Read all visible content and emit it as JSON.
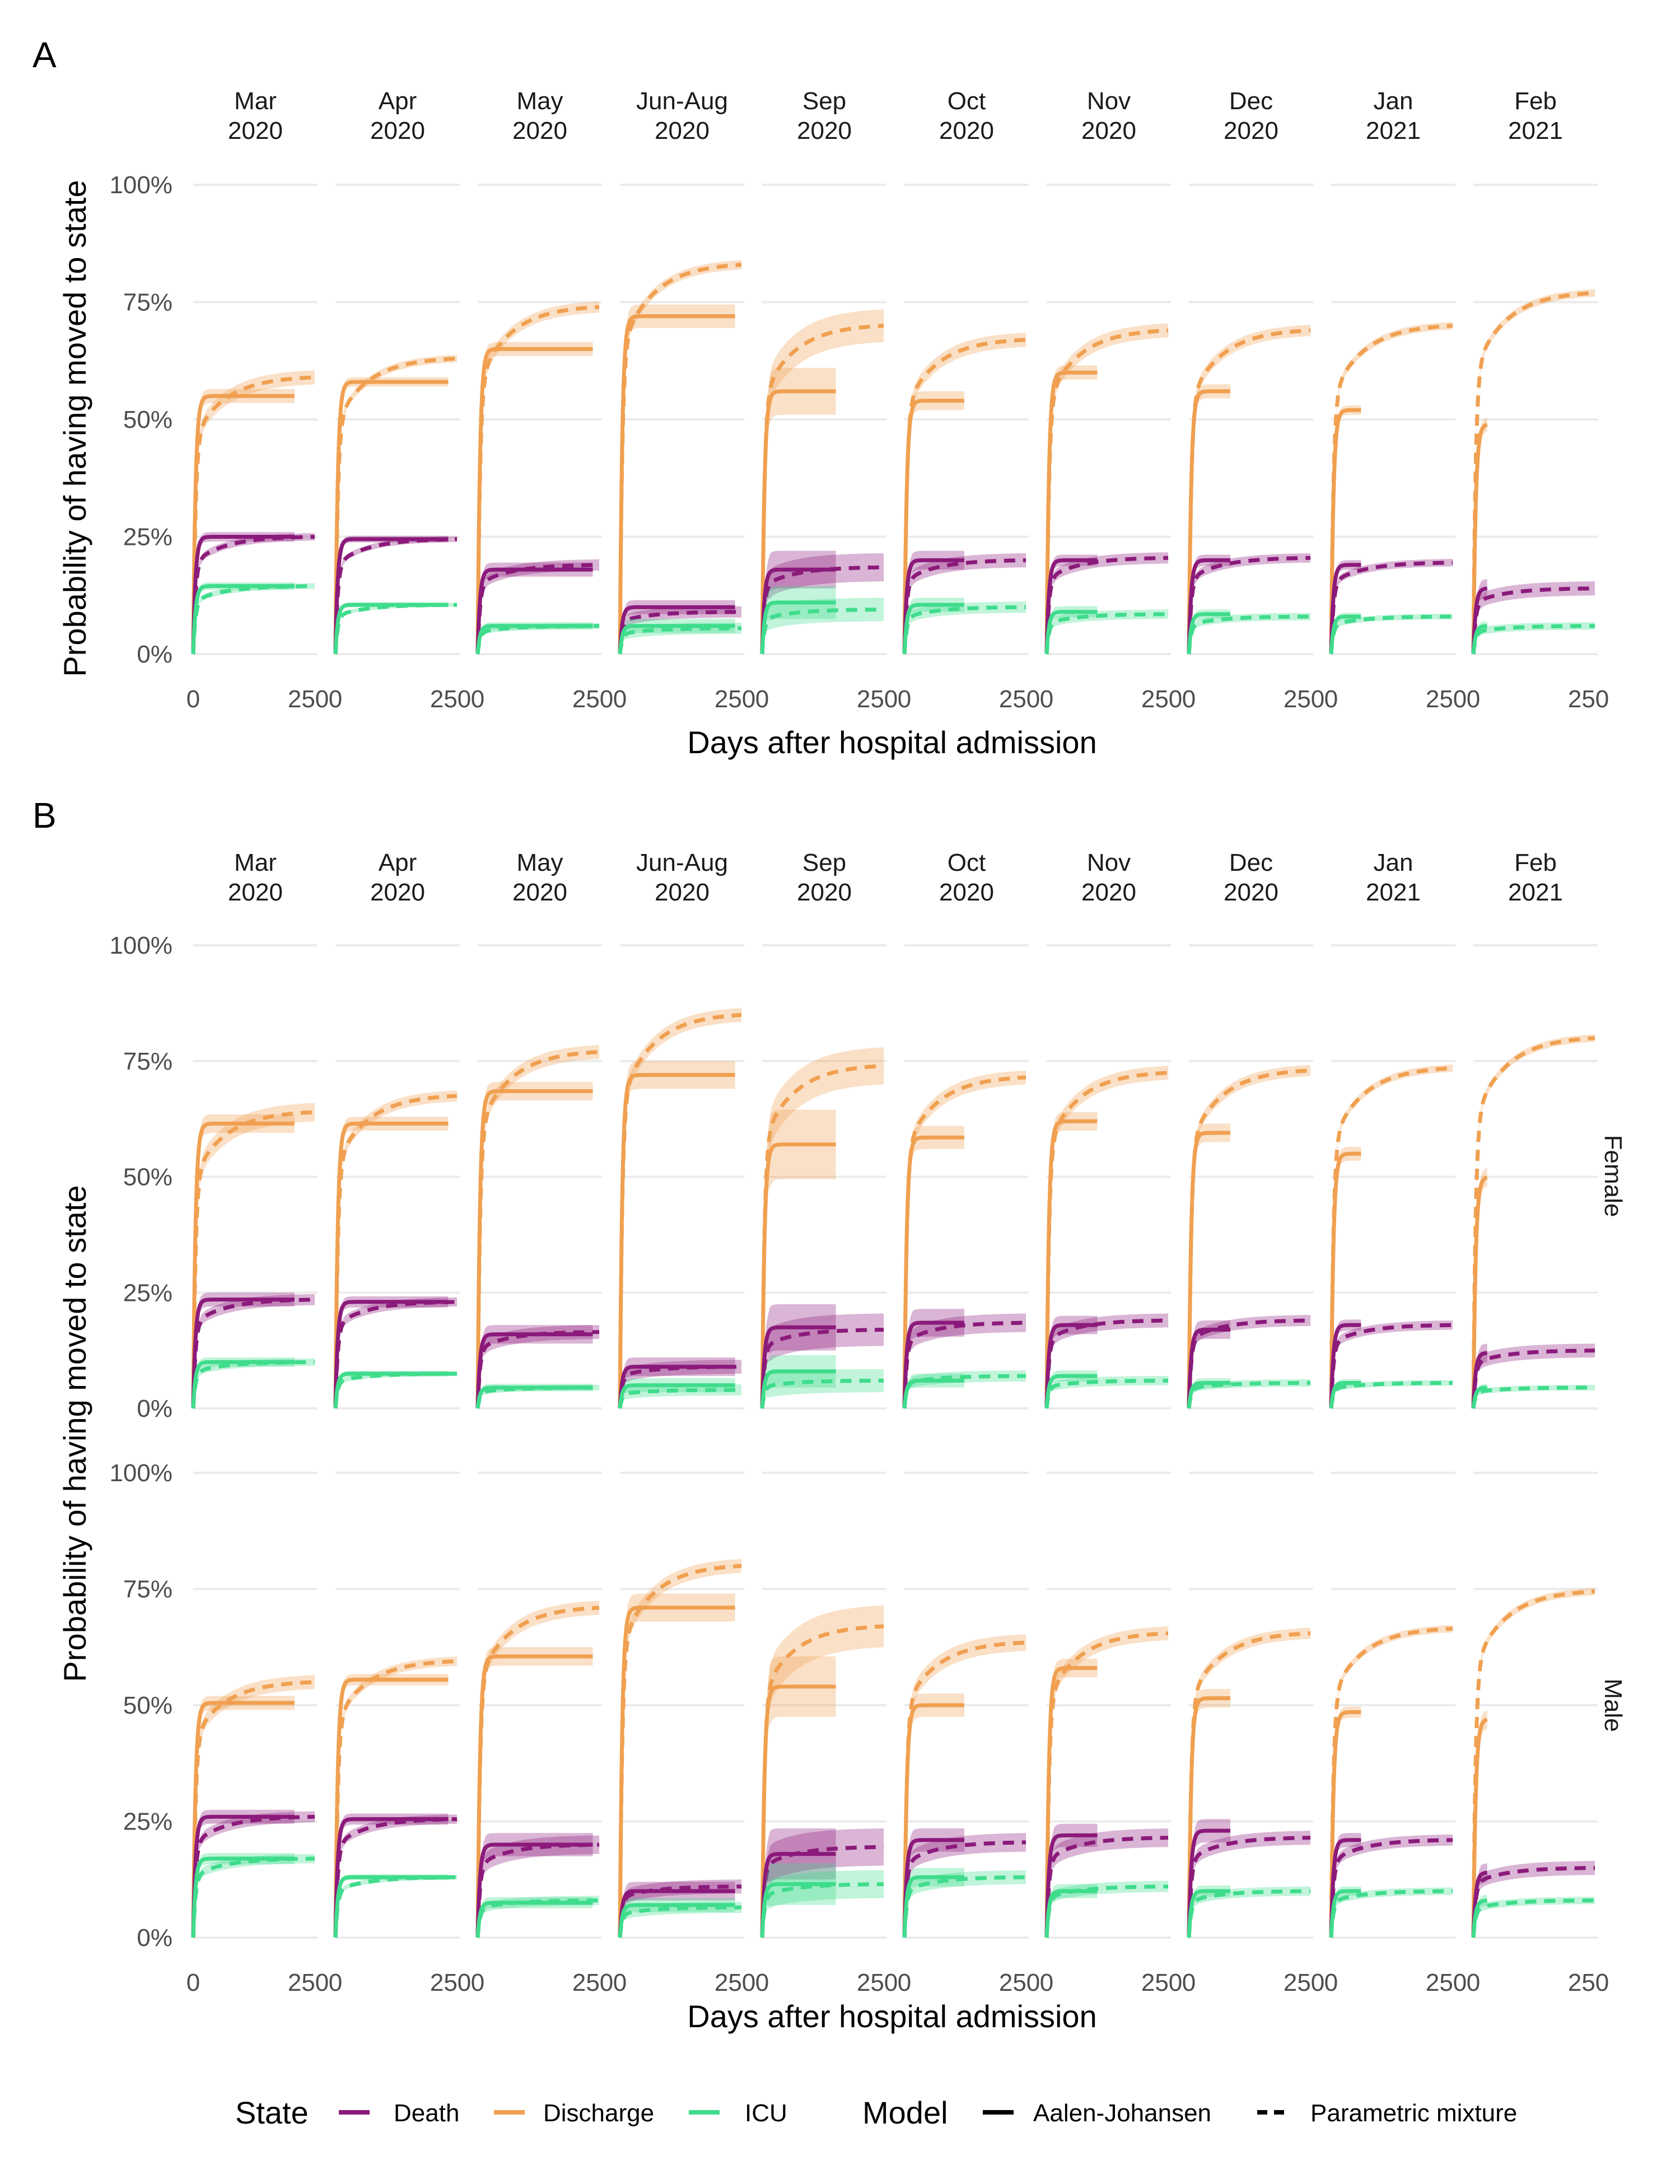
{
  "figure": {
    "months": [
      [
        "Mar",
        "2020"
      ],
      [
        "Apr",
        "2020"
      ],
      [
        "May",
        "2020"
      ],
      [
        "Jun-Aug",
        "2020"
      ],
      [
        "Sep",
        "2020"
      ],
      [
        "Oct",
        "2020"
      ],
      [
        "Nov",
        "2020"
      ],
      [
        "Dec",
        "2020"
      ],
      [
        "Jan",
        "2021"
      ],
      [
        "Feb",
        "2021"
      ]
    ],
    "y_ticks": [
      "0%",
      "25%",
      "50%",
      "75%",
      "100%"
    ],
    "x_ticks": [
      "0",
      "250"
    ],
    "xlabel": "Days after hospital admission",
    "ylabel": "Probability of having moved to state",
    "legend": {
      "state_title": "State",
      "states": [
        {
          "name": "Death",
          "color": "#8b1a7b"
        },
        {
          "name": "Discharge",
          "color": "#f0a050"
        },
        {
          "name": "ICU",
          "color": "#3fdc8c"
        }
      ],
      "model_title": "Model",
      "models": [
        {
          "name": "Aalen-Johansen",
          "line": "solid"
        },
        {
          "name": "Parametric mixture",
          "line": "dashed"
        }
      ]
    }
  },
  "chart_data": [
    {
      "panel": "A",
      "type": "line",
      "xlabel": "Days after hospital admission",
      "ylabel": "Probability of having moved to state",
      "xlim": [
        0,
        270
      ],
      "ylim": [
        0,
        1
      ],
      "grid": true,
      "facets_row": [
        ""
      ],
      "facets_col": [
        "Mar 2020",
        "Apr 2020",
        "May 2020",
        "Jun-Aug 2020",
        "Sep 2020",
        "Oct 2020",
        "Nov 2020",
        "Dec 2020",
        "Jan 2021",
        "Feb 2021"
      ],
      "aj_followup_days": [
        [
          220,
          245,
          250,
          250,
          160,
          130,
          110,
          90,
          65,
          30
        ]
      ],
      "series": [
        {
          "name": "Discharge",
          "model": "Aalen-Johansen",
          "values": [
            [
              0.55,
              0.58,
              0.65,
              0.72,
              0.56,
              0.54,
              0.6,
              0.56,
              0.52,
              0.49
            ]
          ],
          "ci_halfwidth": [
            [
              0.015,
              0.01,
              0.015,
              0.025,
              0.05,
              0.02,
              0.015,
              0.015,
              0.01,
              0.015
            ]
          ]
        },
        {
          "name": "Discharge",
          "model": "Parametric mixture",
          "values": [
            [
              0.59,
              0.63,
              0.74,
              0.83,
              0.7,
              0.67,
              0.69,
              0.69,
              0.7,
              0.77
            ]
          ],
          "ci_halfwidth": [
            [
              0.015,
              0.008,
              0.012,
              0.01,
              0.035,
              0.015,
              0.015,
              0.012,
              0.008,
              0.008
            ]
          ]
        },
        {
          "name": "Death",
          "model": "Aalen-Johansen",
          "values": [
            [
              0.25,
              0.245,
              0.18,
              0.1,
              0.18,
              0.2,
              0.2,
              0.2,
              0.19,
              0.14
            ]
          ],
          "ci_halfwidth": [
            [
              0.01,
              0.007,
              0.015,
              0.015,
              0.04,
              0.02,
              0.012,
              0.012,
              0.01,
              0.02
            ]
          ]
        },
        {
          "name": "Death",
          "model": "Parametric mixture",
          "values": [
            [
              0.25,
              0.245,
              0.19,
              0.09,
              0.185,
              0.2,
              0.205,
              0.205,
              0.195,
              0.14
            ]
          ],
          "ci_halfwidth": [
            [
              0.008,
              0.006,
              0.012,
              0.012,
              0.03,
              0.015,
              0.012,
              0.01,
              0.008,
              0.015
            ]
          ]
        },
        {
          "name": "ICU",
          "model": "Aalen-Johansen",
          "values": [
            [
              0.145,
              0.105,
              0.06,
              0.06,
              0.11,
              0.105,
              0.09,
              0.085,
              0.08,
              0.06
            ]
          ],
          "ci_halfwidth": [
            [
              0.008,
              0.005,
              0.008,
              0.015,
              0.035,
              0.015,
              0.012,
              0.01,
              0.008,
              0.01
            ]
          ]
        },
        {
          "name": "ICU",
          "model": "Parametric mixture",
          "values": [
            [
              0.145,
              0.105,
              0.06,
              0.055,
              0.095,
              0.1,
              0.085,
              0.08,
              0.08,
              0.06
            ]
          ],
          "ci_halfwidth": [
            [
              0.006,
              0.004,
              0.006,
              0.012,
              0.025,
              0.012,
              0.01,
              0.008,
              0.006,
              0.008
            ]
          ]
        }
      ]
    },
    {
      "panel": "B",
      "type": "line",
      "xlabel": "Days after hospital admission",
      "ylabel": "Probability of having moved to state",
      "xlim": [
        0,
        270
      ],
      "ylim": [
        0,
        1
      ],
      "grid": true,
      "facets_row": [
        "Female",
        "Male"
      ],
      "facets_col": [
        "Mar 2020",
        "Apr 2020",
        "May 2020",
        "Jun-Aug 2020",
        "Sep 2020",
        "Oct 2020",
        "Nov 2020",
        "Dec 2020",
        "Jan 2021",
        "Feb 2021"
      ],
      "aj_followup_days": [
        [
          220,
          245,
          250,
          250,
          160,
          130,
          110,
          90,
          65,
          30
        ],
        [
          220,
          245,
          250,
          250,
          160,
          130,
          110,
          90,
          65,
          30
        ]
      ],
      "series": [
        {
          "name": "Discharge",
          "model": "Aalen-Johansen",
          "values": [
            [
              0.615,
              0.615,
              0.685,
              0.72,
              0.57,
              0.585,
              0.62,
              0.595,
              0.55,
              0.5
            ],
            [
              0.505,
              0.555,
              0.605,
              0.71,
              0.54,
              0.5,
              0.58,
              0.515,
              0.485,
              0.47
            ]
          ],
          "ci_halfwidth": [
            [
              0.02,
              0.015,
              0.02,
              0.03,
              0.075,
              0.025,
              0.02,
              0.02,
              0.015,
              0.02
            ],
            [
              0.015,
              0.012,
              0.02,
              0.03,
              0.065,
              0.025,
              0.02,
              0.02,
              0.012,
              0.02
            ]
          ]
        },
        {
          "name": "Discharge",
          "model": "Parametric mixture",
          "values": [
            [
              0.64,
              0.675,
              0.77,
              0.85,
              0.74,
              0.715,
              0.725,
              0.73,
              0.735,
              0.8
            ],
            [
              0.55,
              0.595,
              0.71,
              0.8,
              0.67,
              0.635,
              0.655,
              0.655,
              0.665,
              0.745
            ]
          ],
          "ci_halfwidth": [
            [
              0.02,
              0.012,
              0.015,
              0.015,
              0.04,
              0.015,
              0.015,
              0.012,
              0.008,
              0.008
            ],
            [
              0.015,
              0.01,
              0.015,
              0.015,
              0.045,
              0.018,
              0.015,
              0.012,
              0.008,
              0.008
            ]
          ]
        },
        {
          "name": "Death",
          "model": "Aalen-Johansen",
          "values": [
            [
              0.235,
              0.23,
              0.16,
              0.09,
              0.175,
              0.185,
              0.18,
              0.17,
              0.18,
              0.12
            ],
            [
              0.26,
              0.255,
              0.2,
              0.1,
              0.18,
              0.21,
              0.22,
              0.23,
              0.21,
              0.14
            ]
          ],
          "ci_halfwidth": [
            [
              0.015,
              0.012,
              0.02,
              0.02,
              0.05,
              0.03,
              0.02,
              0.02,
              0.012,
              0.02
            ],
            [
              0.015,
              0.012,
              0.025,
              0.02,
              0.055,
              0.025,
              0.025,
              0.025,
              0.015,
              0.02
            ]
          ]
        },
        {
          "name": "Death",
          "model": "Parametric mixture",
          "values": [
            [
              0.235,
              0.23,
              0.165,
              0.09,
              0.17,
              0.185,
              0.19,
              0.19,
              0.18,
              0.125
            ],
            [
              0.26,
              0.255,
              0.2,
              0.11,
              0.195,
              0.205,
              0.215,
              0.215,
              0.21,
              0.15
            ]
          ],
          "ci_halfwidth": [
            [
              0.012,
              0.01,
              0.015,
              0.015,
              0.035,
              0.02,
              0.015,
              0.012,
              0.01,
              0.015
            ],
            [
              0.012,
              0.01,
              0.02,
              0.015,
              0.04,
              0.02,
              0.02,
              0.015,
              0.012,
              0.015
            ]
          ]
        },
        {
          "name": "ICU",
          "model": "Aalen-Johansen",
          "values": [
            [
              0.1,
              0.075,
              0.045,
              0.05,
              0.08,
              0.06,
              0.07,
              0.055,
              0.055,
              0.045
            ],
            [
              0.17,
              0.13,
              0.075,
              0.07,
              0.115,
              0.13,
              0.1,
              0.1,
              0.1,
              0.08
            ]
          ],
          "ci_halfwidth": [
            [
              0.01,
              0.006,
              0.008,
              0.015,
              0.035,
              0.015,
              0.012,
              0.01,
              0.008,
              0.008
            ],
            [
              0.012,
              0.006,
              0.012,
              0.015,
              0.045,
              0.02,
              0.015,
              0.012,
              0.01,
              0.012
            ]
          ]
        },
        {
          "name": "ICU",
          "model": "Parametric mixture",
          "values": [
            [
              0.1,
              0.075,
              0.045,
              0.04,
              0.06,
              0.07,
              0.06,
              0.055,
              0.055,
              0.045
            ],
            [
              0.17,
              0.13,
              0.08,
              0.065,
              0.115,
              0.13,
              0.11,
              0.1,
              0.1,
              0.08
            ]
          ],
          "ci_halfwidth": [
            [
              0.008,
              0.005,
              0.006,
              0.012,
              0.025,
              0.012,
              0.01,
              0.008,
              0.006,
              0.006
            ],
            [
              0.01,
              0.005,
              0.01,
              0.012,
              0.03,
              0.015,
              0.012,
              0.01,
              0.008,
              0.008
            ]
          ]
        }
      ]
    }
  ]
}
